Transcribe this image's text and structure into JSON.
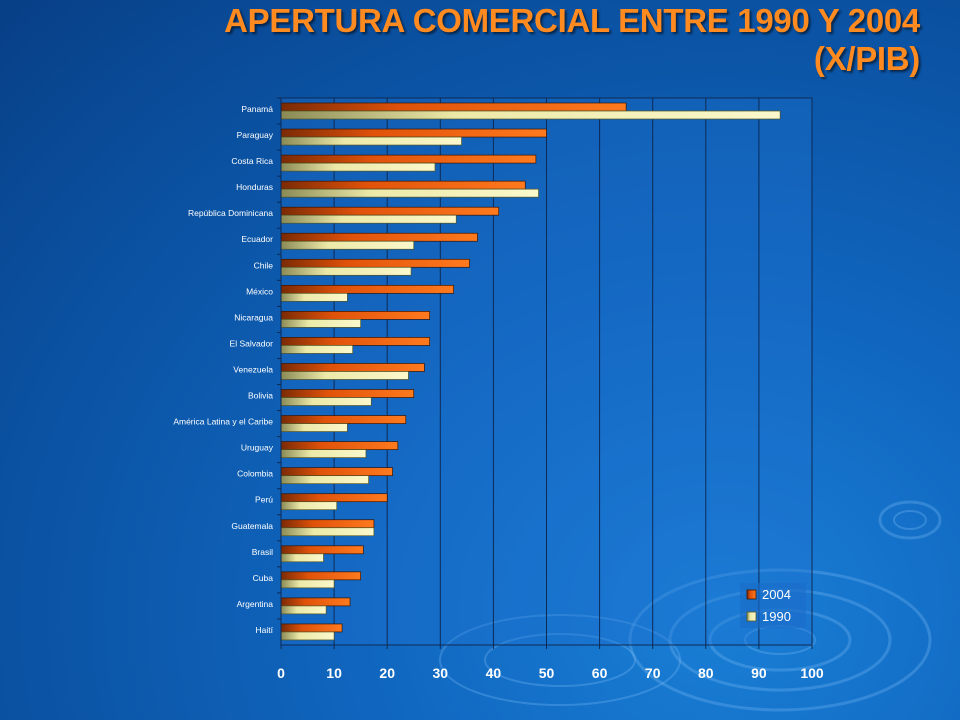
{
  "slide": {
    "title_line1": "APERTURA  COMERCIAL ENTRE 1990 Y 2004",
    "title_line2": "(X/PIB)"
  },
  "colors": {
    "background": "#0d5bb3",
    "title": "#ff8a1f",
    "series_2004": "#ff6a10",
    "series_1990": "#f4f0b0",
    "plot_bg": "#1f73d0"
  },
  "decorations": [
    "water-ripple-rings"
  ],
  "chart_data": {
    "type": "bar",
    "orientation": "horizontal",
    "title": "",
    "xlabel": "",
    "ylabel": "",
    "xlim": [
      0,
      100
    ],
    "x_ticks": [
      "0",
      "10",
      "20",
      "30",
      "40",
      "50",
      "60",
      "70",
      "80",
      "90",
      "100"
    ],
    "grid": "vertical",
    "legend_position": "bottom-right",
    "categories": [
      "Panamá",
      "Paraguay",
      "Costa Rica",
      "Honduras",
      "República Dominicana",
      "Ecuador",
      "Chile",
      "México",
      "Nicaragua",
      "El Salvador",
      "Venezuela",
      "Bolivia",
      "América Latina y el Caribe",
      "Uruguay",
      "Colombia",
      "Perú",
      "Guatemala",
      "Brasil",
      "Cuba",
      "Argentina",
      "Haití"
    ],
    "series": [
      {
        "name": "2004",
        "values": [
          65,
          50,
          48,
          46,
          41,
          37,
          35.5,
          32.5,
          28,
          28,
          27,
          25,
          23.5,
          22,
          21,
          20,
          17.5,
          15.5,
          15,
          13,
          11.5
        ]
      },
      {
        "name": "1990",
        "values": [
          94,
          34,
          29,
          48.5,
          33,
          25,
          24.5,
          12.5,
          15,
          13.5,
          24,
          17,
          12.5,
          16,
          16.5,
          10.5,
          17.5,
          8,
          10,
          8.5,
          10
        ]
      }
    ]
  }
}
